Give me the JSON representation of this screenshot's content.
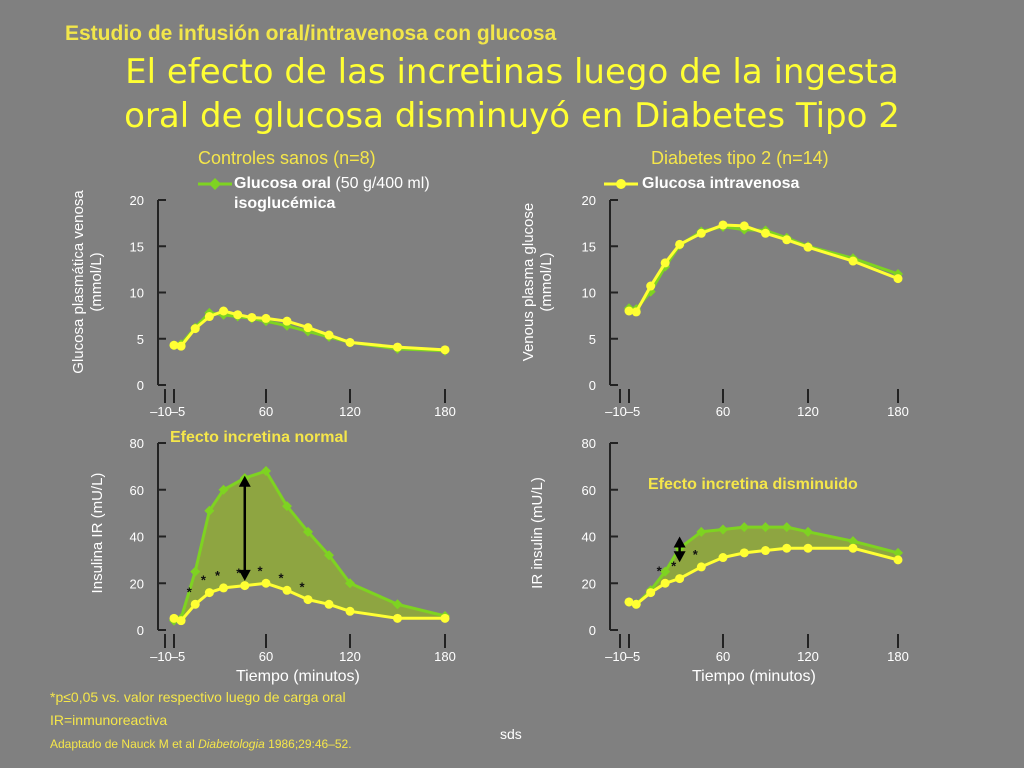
{
  "header": {
    "study_title": "Estudio de infusión oral/intravenosa con glucosa",
    "title_line1": "El efecto de las incretinas luego de la ingesta",
    "title_line2": "oral de glucosa disminuyó en Diabetes Tipo 2"
  },
  "groups": {
    "left": "Controles sanos (n=8)",
    "right": "Diabetes tipo 2 (n=14)"
  },
  "legend": {
    "oral": "Glucosa oral",
    "oral_detail": "(50 g/400 ml)",
    "oral_line2": "isoglucémica",
    "iv": "Glucosa intravenosa",
    "oral_color": "#7ed321",
    "iv_color": "#ffff33"
  },
  "axis_text": {
    "left_glucose_ylabel_1": "Glucosa plasmática venosa",
    "left_glucose_ylabel_2": "(mmol/L)",
    "right_glucose_ylabel_1": "Venous plasma glucose",
    "right_glucose_ylabel_2": "(mmol/L)",
    "left_insulin_ylabel": "Insulina IR (mU/L)",
    "right_insulin_ylabel": "IR insulin (mU/L)",
    "xtitle_left": "Tiempo (minutos)",
    "xtitle_right": "Tiempo (minutos)"
  },
  "annotations": {
    "normal": "Efecto incretina normal",
    "diminished": "Efecto incretina disminuido",
    "asterisk": "*"
  },
  "footer": {
    "note1": "*p≤0,05 vs. valor respectivo luego de carga oral",
    "note2": "IR=inmunoreactiva",
    "source_prefix": "Adaptado de Nauck M et al ",
    "source_journal": "Diabetologia",
    "source_suffix": " 1986;29:46–52."
  },
  "slide_tag": "sds",
  "chart_data": [
    {
      "id": "glucose-healthy",
      "type": "line",
      "title": "Controles sanos (n=8)",
      "ylabel": "Glucosa plasmática venosa (mmol/L)",
      "ylim": [
        0,
        20
      ],
      "yticks": [
        0,
        5,
        10,
        15,
        20
      ],
      "xticks": [
        -10,
        -5,
        60,
        120,
        180
      ],
      "xtick_labels": [
        "–10",
        "–5",
        "60",
        "120",
        "180"
      ],
      "series": [
        {
          "name": "Glucosa oral",
          "color": "#7ed321",
          "x": [
            -5,
            0,
            10,
            20,
            30,
            40,
            50,
            60,
            75,
            90,
            105,
            120,
            150,
            180
          ],
          "y": [
            4.3,
            4.4,
            6.2,
            7.8,
            7.6,
            7.4,
            7.2,
            6.9,
            6.4,
            5.8,
            5.2,
            4.6,
            3.9,
            3.7
          ]
        },
        {
          "name": "Glucosa intravenosa",
          "color": "#ffff33",
          "x": [
            -5,
            0,
            10,
            20,
            30,
            40,
            50,
            60,
            75,
            90,
            105,
            120,
            150,
            180
          ],
          "y": [
            4.3,
            4.2,
            6.1,
            7.4,
            8.0,
            7.6,
            7.3,
            7.2,
            6.9,
            6.2,
            5.4,
            4.6,
            4.1,
            3.8
          ]
        }
      ]
    },
    {
      "id": "glucose-t2d",
      "type": "line",
      "title": "Diabetes tipo 2 (n=14)",
      "ylabel": "Venous plasma glucose (mmol/L)",
      "ylim": [
        0,
        20
      ],
      "yticks": [
        0,
        5,
        10,
        15,
        20
      ],
      "xticks": [
        -10,
        -5,
        60,
        120,
        180
      ],
      "xtick_labels": [
        "–10",
        "–5",
        "60",
        "120",
        "180"
      ],
      "series": [
        {
          "name": "Glucosa oral",
          "color": "#7ed321",
          "x": [
            -5,
            0,
            10,
            20,
            30,
            45,
            60,
            75,
            90,
            105,
            120,
            150,
            180
          ],
          "y": [
            8.3,
            8.2,
            10.1,
            12.8,
            15.1,
            16.6,
            17.1,
            16.8,
            16.7,
            15.9,
            15.0,
            13.7,
            12.0
          ]
        },
        {
          "name": "Glucosa intravenosa",
          "color": "#ffff33",
          "x": [
            -5,
            0,
            10,
            20,
            30,
            45,
            60,
            75,
            90,
            105,
            120,
            150,
            180
          ],
          "y": [
            8.0,
            7.9,
            10.7,
            13.2,
            15.2,
            16.4,
            17.3,
            17.2,
            16.4,
            15.7,
            14.9,
            13.4,
            11.5
          ]
        }
      ]
    },
    {
      "id": "insulin-healthy",
      "type": "area",
      "ylabel": "Insulina IR (mU/L)",
      "xlabel": "Tiempo (minutos)",
      "ylim": [
        0,
        80
      ],
      "yticks": [
        0,
        20,
        40,
        60,
        80
      ],
      "xticks": [
        -10,
        -5,
        60,
        120,
        180
      ],
      "xtick_labels": [
        "–10",
        "–5",
        "60",
        "120",
        "180"
      ],
      "series": [
        {
          "name": "Glucosa oral",
          "color": "#7ed321",
          "x": [
            -5,
            0,
            10,
            20,
            30,
            45,
            60,
            75,
            90,
            105,
            120,
            150,
            180
          ],
          "y": [
            4,
            5,
            25,
            51,
            60,
            65,
            68,
            53,
            42,
            32,
            20,
            11,
            6
          ]
        },
        {
          "name": "Glucosa intravenosa",
          "color": "#ffff33",
          "x": [
            -5,
            0,
            10,
            20,
            30,
            45,
            60,
            75,
            90,
            105,
            120,
            150,
            180
          ],
          "y": [
            5,
            4,
            11,
            16,
            18,
            19,
            20,
            17,
            13,
            11,
            8,
            5,
            5
          ]
        }
      ],
      "significant_x": [
        10,
        20,
        30,
        45,
        60,
        75,
        90
      ],
      "effect_arrow": {
        "x": 45,
        "y_from": 21,
        "y_to": 66
      }
    },
    {
      "id": "insulin-t2d",
      "type": "area",
      "ylabel": "IR insulin (mU/L)",
      "xlabel": "Tiempo (minutos)",
      "ylim": [
        0,
        80
      ],
      "yticks": [
        0,
        20,
        40,
        60,
        80
      ],
      "xticks": [
        -10,
        -5,
        60,
        120,
        180
      ],
      "xtick_labels": [
        "–10",
        "–5",
        "60",
        "120",
        "180"
      ],
      "series": [
        {
          "name": "Glucosa oral",
          "color": "#7ed321",
          "x": [
            -5,
            0,
            10,
            20,
            30,
            45,
            60,
            75,
            90,
            105,
            120,
            150,
            180
          ],
          "y": [
            12,
            11,
            17,
            25,
            35,
            42,
            43,
            44,
            44,
            44,
            42,
            38,
            33
          ]
        },
        {
          "name": "Glucosa intravenosa",
          "color": "#ffff33",
          "x": [
            -5,
            0,
            10,
            20,
            30,
            45,
            60,
            75,
            90,
            105,
            120,
            150,
            180
          ],
          "y": [
            12,
            11,
            16,
            20,
            22,
            27,
            31,
            33,
            34,
            35,
            35,
            35,
            30
          ]
        }
      ],
      "significant_x": [
        20,
        30,
        45
      ],
      "effect_arrow": {
        "x": 30,
        "y_from": 29,
        "y_to": 40
      }
    }
  ]
}
